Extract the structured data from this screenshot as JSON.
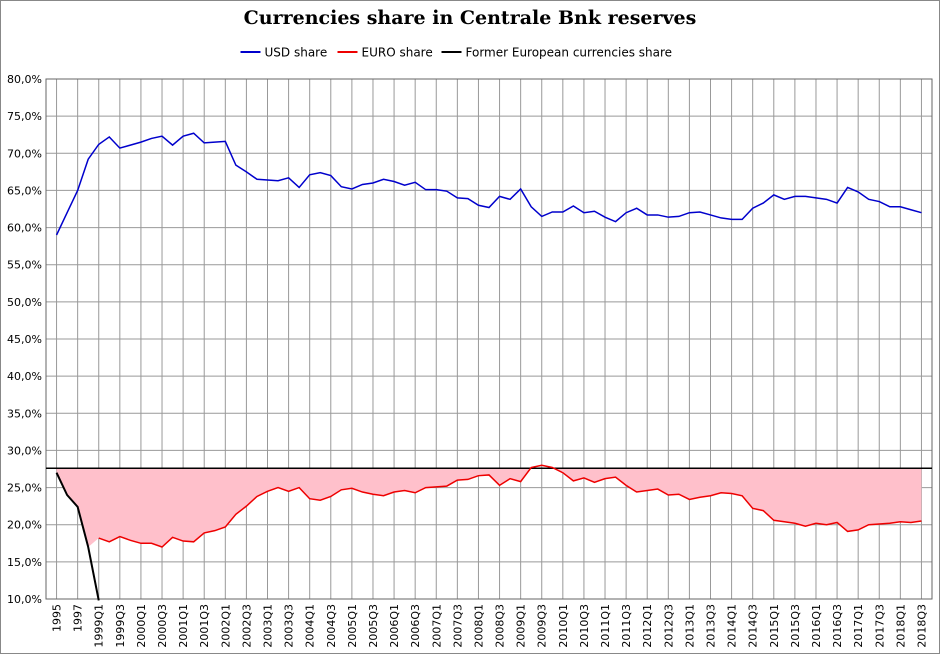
{
  "chart_data": {
    "type": "line",
    "title": "Currencies share in Centrale Bnk reserves",
    "categories": [
      "1995",
      null,
      "1997",
      null,
      "1999Q1",
      null,
      "1999Q3",
      null,
      "2000Q1",
      null,
      "2000Q3",
      null,
      "2001Q1",
      null,
      "2001Q3",
      null,
      "2002Q1",
      null,
      "2002Q3",
      null,
      "2003Q1",
      null,
      "2003Q3",
      null,
      "2004Q1",
      null,
      "2004Q3",
      null,
      "2005Q1",
      null,
      "2005Q3",
      null,
      "2006Q1",
      null,
      "2006Q3",
      null,
      "2007Q1",
      null,
      "2007Q3",
      null,
      "2008Q1",
      null,
      "2008Q3",
      null,
      "2009Q1",
      null,
      "2009Q3",
      null,
      "2010Q1",
      null,
      "2010Q3",
      null,
      "2011Q1",
      null,
      "2011Q3",
      null,
      "2012Q1",
      null,
      "2012Q3",
      null,
      "2013Q1",
      null,
      "2013Q3",
      null,
      "2014Q1",
      null,
      "2014Q3",
      null,
      "2015Q1",
      null,
      "2015Q3",
      null,
      "2016Q1",
      null,
      "2016Q3",
      null,
      "2017Q1",
      null,
      "2017Q3",
      null,
      "2018Q1",
      null,
      "2018Q3"
    ],
    "series": [
      {
        "name": "USD share",
        "color": "#0000cc",
        "values": [
          59.0,
          62.0,
          65.0,
          69.2,
          71.2,
          72.2,
          70.7,
          71.1,
          71.5,
          72.0,
          72.3,
          71.1,
          72.3,
          72.7,
          71.4,
          71.5,
          71.6,
          68.4,
          67.5,
          66.5,
          66.4,
          66.3,
          66.7,
          65.4,
          67.1,
          67.4,
          67.0,
          65.5,
          65.2,
          65.8,
          66.0,
          66.5,
          66.2,
          65.7,
          66.1,
          65.1,
          65.1,
          64.9,
          64.0,
          63.9,
          63.0,
          62.7,
          64.2,
          63.8,
          65.2,
          62.8,
          61.5,
          62.1,
          62.1,
          62.9,
          62.0,
          62.2,
          61.4,
          60.8,
          62.0,
          62.6,
          61.7,
          61.7,
          61.4,
          61.5,
          62.0,
          62.1,
          61.7,
          61.3,
          61.1,
          61.1,
          62.6,
          63.3,
          64.4,
          63.8,
          64.2,
          64.2,
          64.0,
          63.8,
          63.3,
          65.4,
          64.8,
          63.8,
          63.5,
          62.8,
          62.8,
          62.4,
          62.0
        ]
      },
      {
        "name": "EURO share",
        "color": "#ee0000",
        "values": [
          null,
          null,
          null,
          null,
          18.2,
          17.7,
          18.4,
          17.9,
          17.5,
          17.5,
          17.0,
          18.3,
          17.8,
          17.7,
          18.9,
          19.2,
          19.7,
          21.4,
          22.5,
          23.8,
          24.5,
          25.0,
          24.5,
          25.0,
          23.5,
          23.3,
          23.8,
          24.7,
          24.9,
          24.4,
          24.1,
          23.9,
          24.4,
          24.6,
          24.3,
          25.0,
          25.1,
          25.2,
          26.0,
          26.1,
          26.6,
          26.7,
          25.3,
          26.2,
          25.8,
          27.7,
          28.0,
          27.7,
          27.0,
          25.9,
          26.3,
          25.7,
          26.2,
          26.4,
          25.3,
          24.4,
          24.6,
          24.8,
          24.0,
          24.1,
          23.4,
          23.7,
          23.9,
          24.3,
          24.2,
          23.9,
          22.2,
          21.9,
          20.6,
          20.4,
          20.2,
          19.8,
          20.2,
          20.0,
          20.3,
          19.1,
          19.3,
          20.0,
          20.1,
          20.2,
          20.4,
          20.3,
          20.5
        ]
      },
      {
        "name": "Former European currencies share",
        "color": "#000000",
        "values": [
          27.0,
          24.0,
          22.4,
          17.0,
          9.8,
          null,
          null,
          null,
          null,
          null,
          null,
          null,
          null,
          null,
          null,
          null,
          null,
          null,
          null,
          null,
          null,
          null,
          null,
          null,
          null,
          null,
          null,
          null,
          null,
          null,
          null,
          null,
          null,
          null,
          null,
          null,
          null,
          null,
          null,
          null,
          null,
          null,
          null,
          null,
          null,
          null,
          null,
          null,
          null,
          null,
          null,
          null,
          null,
          null,
          null,
          null,
          null,
          null,
          null,
          null,
          null,
          null,
          null,
          null,
          null,
          null,
          null,
          null,
          null,
          null,
          null,
          null,
          null,
          null,
          null,
          null,
          null,
          null,
          null,
          null,
          null,
          null,
          null
        ]
      }
    ],
    "reference_line": {
      "value": 27.6,
      "color": "#000000",
      "fill": "#ffc0cb"
    },
    "ylim": [
      10,
      80
    ],
    "yticks": [
      {
        "value": 10,
        "label": "10,0%"
      },
      {
        "value": 15,
        "label": "15,0%"
      },
      {
        "value": 20,
        "label": "20,0%"
      },
      {
        "value": 25,
        "label": "25,0%"
      },
      {
        "value": 30,
        "label": "30,0%"
      },
      {
        "value": 35,
        "label": "35,0%"
      },
      {
        "value": 40,
        "label": "40,0%"
      },
      {
        "value": 45,
        "label": "45,0%"
      },
      {
        "value": 50,
        "label": "50,0%"
      },
      {
        "value": 55,
        "label": "55,0%"
      },
      {
        "value": 60,
        "label": "60,0%"
      },
      {
        "value": 65,
        "label": "65,0%"
      },
      {
        "value": 70,
        "label": "70,0%"
      },
      {
        "value": 75,
        "label": "75,0%"
      },
      {
        "value": 80,
        "label": "80,0%"
      }
    ],
    "grid": true,
    "legend": "top"
  }
}
